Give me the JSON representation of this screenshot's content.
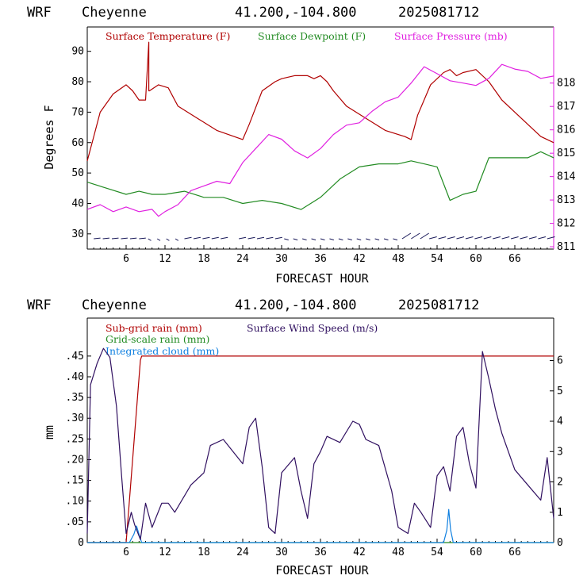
{
  "charts": [
    {
      "title": {
        "model": "WRF",
        "station": "Cheyenne",
        "coords": "41.200,-104.800",
        "run": "2025081712"
      },
      "xlabel": "FORECAST HOUR",
      "ylabel_left": "Degrees F",
      "legend": {
        "temp": "Surface Temperature (F)",
        "dew": "Surface Dewpoint (F)",
        "pres": "Surface Pressure (mb)"
      }
    },
    {
      "title": {
        "model": "WRF",
        "station": "Cheyenne",
        "coords": "41.200,-104.800",
        "run": "2025081712"
      },
      "xlabel": "FORECAST HOUR",
      "ylabel_left": "mm",
      "legend": {
        "subgrid": "Sub-grid rain (mm)",
        "wind": "Surface Wind Speed (m/s)",
        "gridscale": "Grid-scale rain (mm)",
        "cloud": "Integrated cloud (mm)"
      }
    }
  ],
  "colors": {
    "temp": "#b00000",
    "dew": "#228b22",
    "pres": "#e020e0",
    "wind": "#301060",
    "subgrid": "#b00000",
    "gridscale": "#228b22",
    "cloud": "#1080e0",
    "barb": "#1a1a5a"
  },
  "chart_data": [
    {
      "type": "line",
      "xlim": [
        0,
        72
      ],
      "x_ticks": [
        6,
        12,
        18,
        24,
        30,
        36,
        42,
        48,
        54,
        60,
        66
      ],
      "y_left_ticks": [
        30,
        40,
        50,
        60,
        70,
        80,
        90
      ],
      "y_left_lim": [
        25,
        98
      ],
      "y_right_ticks": [
        811,
        812,
        813,
        814,
        815,
        816,
        817,
        818
      ],
      "y_right_lim": [
        810.9,
        820.4
      ],
      "wind_barbs_shown": true,
      "series": [
        {
          "name": "Surface Temperature (F)",
          "axis": "left",
          "x": [
            0,
            1,
            2,
            4,
            6,
            7,
            8,
            9,
            9.5,
            9.5,
            9.6,
            11,
            12.5,
            14,
            17,
            20,
            24,
            25,
            27,
            29,
            30,
            32,
            34,
            35,
            36,
            37,
            38,
            40,
            43,
            46,
            49,
            50,
            51,
            53,
            55,
            56,
            57,
            58,
            60,
            62,
            64,
            66,
            68,
            70,
            72
          ],
          "values": [
            54,
            62,
            70,
            76,
            79,
            77,
            74,
            74,
            93,
            77,
            77,
            79,
            78,
            72,
            68,
            64,
            61,
            66,
            77,
            80,
            81,
            82,
            82,
            81,
            82,
            80,
            77,
            72,
            68,
            64,
            62,
            61,
            69,
            79,
            83,
            84,
            82,
            83,
            84,
            80,
            74,
            70,
            66,
            62,
            60
          ]
        },
        {
          "name": "Surface Dewpoint (F)",
          "axis": "left",
          "x": [
            0,
            3,
            6,
            8,
            10,
            12,
            15,
            18,
            21,
            24,
            27,
            30,
            33,
            36,
            39,
            42,
            45,
            48,
            50,
            52,
            54,
            56,
            58,
            60,
            62,
            64,
            68,
            70,
            72
          ],
          "values": [
            47,
            45,
            43,
            44,
            43,
            43,
            44,
            42,
            42,
            40,
            41,
            40,
            38,
            42,
            48,
            52,
            53,
            53,
            54,
            53,
            52,
            41,
            43,
            44,
            55,
            55,
            55,
            57,
            55
          ]
        },
        {
          "name": "Surface Pressure (mb)",
          "axis": "right",
          "x": [
            0,
            2,
            4,
            6,
            8,
            10,
            11,
            12,
            14,
            16,
            18,
            20,
            22,
            24,
            26,
            28,
            30,
            32,
            34,
            36,
            38,
            40,
            42,
            44,
            46,
            48,
            50,
            52,
            54,
            56,
            58,
            60,
            62,
            64,
            66,
            68,
            70,
            72
          ],
          "values": [
            812.6,
            812.8,
            812.5,
            812.7,
            812.5,
            812.6,
            812.3,
            812.5,
            812.8,
            813.4,
            813.6,
            813.8,
            813.7,
            814.6,
            815.2,
            815.8,
            815.6,
            815.1,
            814.8,
            815.2,
            815.8,
            816.2,
            816.3,
            816.8,
            817.2,
            817.4,
            818.0,
            818.7,
            818.4,
            818.1,
            818.0,
            817.9,
            818.2,
            818.8,
            818.6,
            818.5,
            818.2,
            818.3
          ]
        }
      ]
    },
    {
      "type": "line",
      "xlim": [
        0,
        72
      ],
      "x_ticks": [
        6,
        12,
        18,
        24,
        30,
        36,
        42,
        48,
        54,
        60,
        66
      ],
      "y_left_ticks": [
        0,
        0.05,
        0.1,
        0.15,
        0.2,
        0.25,
        0.3,
        0.35,
        0.4,
        0.45
      ],
      "y_left_tick_labels": [
        "0",
        ".05",
        ".10",
        ".15",
        ".20",
        ".25",
        ".30",
        ".35",
        ".40",
        ".45"
      ],
      "y_left_lim": [
        0,
        0.5416
      ],
      "y_right_ticks": [
        0,
        1,
        2,
        3,
        4,
        5,
        6
      ],
      "y_right_lim": [
        0,
        7.4
      ],
      "series": [
        {
          "name": "Sub-grid rain (mm)",
          "axis": "left",
          "x": [
            0,
            6,
            8.2,
            8.4,
            72
          ],
          "values": [
            0,
            0,
            0.44,
            0.45,
            0.45
          ]
        },
        {
          "name": "Grid-scale rain (mm)",
          "axis": "left",
          "x": [
            0,
            72
          ],
          "values": [
            0,
            0
          ]
        },
        {
          "name": "Integrated cloud (mm)",
          "axis": "left",
          "x": [
            0,
            6.5,
            7.2,
            7.6,
            8.0,
            8.4,
            9.0,
            55.0,
            55.5,
            55.8,
            56.1,
            56.5,
            72
          ],
          "values": [
            0,
            0,
            0.02,
            0.04,
            0.02,
            0,
            0,
            0,
            0.03,
            0.08,
            0.03,
            0,
            0
          ]
        },
        {
          "name": "Surface Wind Speed (m/s)",
          "axis": "right",
          "x": [
            0,
            0.5,
            1.5,
            2.5,
            3.5,
            4.5,
            5.3,
            6.0,
            6.8,
            7.3,
            8.2,
            9.0,
            10.0,
            11.5,
            12.5,
            13.5,
            16,
            18,
            19,
            21,
            24,
            25,
            26,
            27,
            28,
            29,
            30,
            32,
            33,
            34,
            35,
            36,
            37,
            39,
            41,
            42,
            43,
            45,
            47,
            48,
            49.5,
            50.5,
            51.5,
            53,
            54,
            55,
            56,
            57,
            58,
            59,
            60,
            61,
            62,
            63,
            64,
            66,
            68,
            70,
            71,
            72
          ],
          "values": [
            0.3,
            5.2,
            5.9,
            6.4,
            6.1,
            4.5,
            2.2,
            0.3,
            1.0,
            0.6,
            0.1,
            1.3,
            0.5,
            1.3,
            1.3,
            1.0,
            1.9,
            2.3,
            3.2,
            3.4,
            2.6,
            3.8,
            4.1,
            2.5,
            0.5,
            0.3,
            2.3,
            2.8,
            1.7,
            0.8,
            2.6,
            3.0,
            3.5,
            3.3,
            4.0,
            3.9,
            3.4,
            3.2,
            1.7,
            0.5,
            0.3,
            1.3,
            1.0,
            0.5,
            2.2,
            2.5,
            1.7,
            3.5,
            3.8,
            2.6,
            1.8,
            6.3,
            5.4,
            4.4,
            3.6,
            2.4,
            1.9,
            1.4,
            2.8,
            0.8
          ]
        }
      ]
    }
  ]
}
